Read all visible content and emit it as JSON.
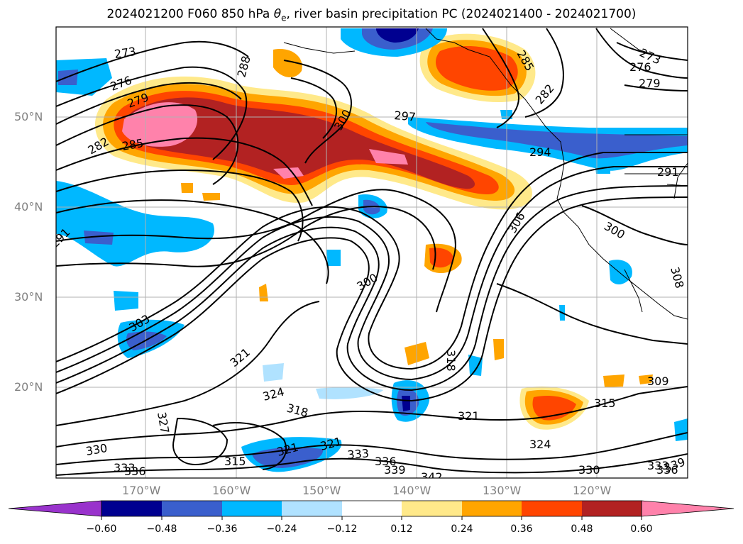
{
  "figure": {
    "title_prefix": "2024021200 F060 850 hPa ",
    "title_symbol": "θ",
    "title_subscript": "e",
    "title_suffix": ", river basin precipitation PC (2024021400 - 2024021700)"
  },
  "axes": {
    "lat_labels": [
      "50°N",
      "40°N",
      "30°N",
      "20°N"
    ],
    "lon_labels": [
      "170°W",
      "160°W",
      "150°W",
      "140°W",
      "130°W",
      "120°W"
    ]
  },
  "contours": {
    "labels": [
      "273",
      "276",
      "279",
      "282",
      "285",
      "288",
      "291",
      "294",
      "297",
      "300",
      "303",
      "306",
      "308",
      "309",
      "315",
      "318",
      "321",
      "324",
      "327",
      "330",
      "333",
      "336",
      "339",
      "342"
    ]
  },
  "colorbar": {
    "tick_labels": [
      "−0.60",
      "−0.48",
      "−0.36",
      "−0.24",
      "−0.12",
      "0.12",
      "0.24",
      "0.36",
      "0.48",
      "0.60"
    ],
    "colors": [
      "#9933cc",
      "#000090",
      "#3a5fcd",
      "#00b8ff",
      "#b0e2ff",
      "#ffffff",
      "#ffe98a",
      "#ffa500",
      "#ff4500",
      "#b22222",
      "#ff82ab"
    ]
  }
}
